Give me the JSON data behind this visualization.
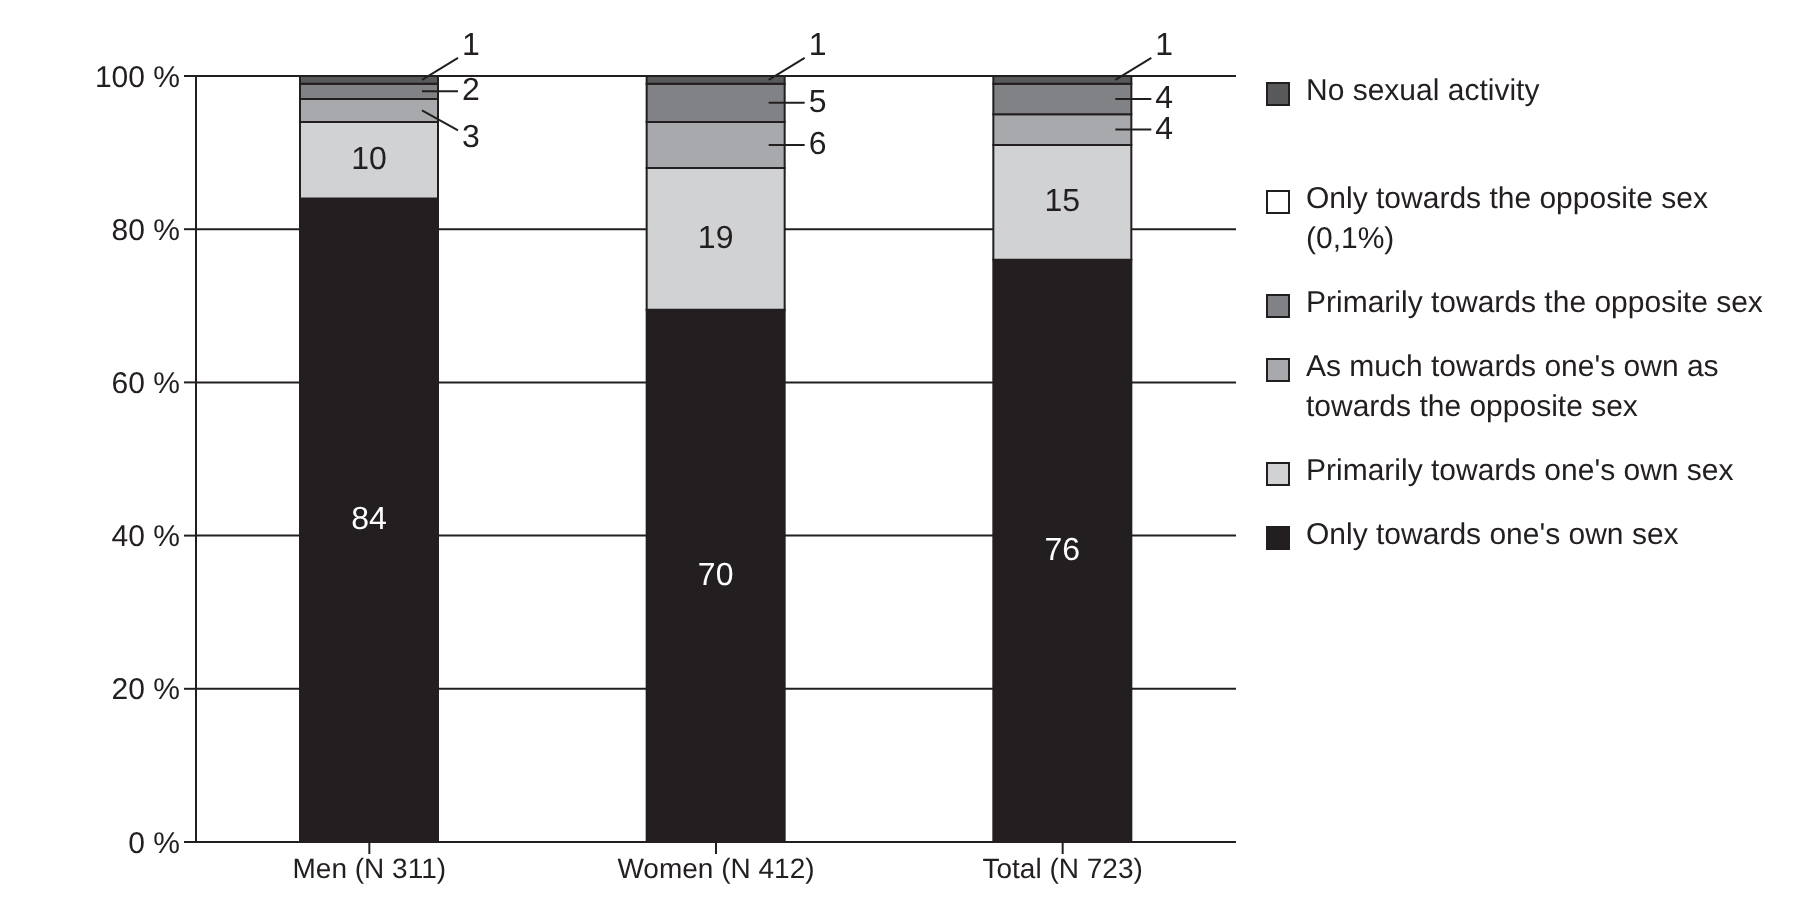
{
  "chart_data": {
    "type": "bar",
    "stacked": true,
    "categories": [
      "Men (N 311)",
      "Women (N 412)",
      "Total (N 723)"
    ],
    "ylim": [
      0,
      100
    ],
    "yticks": [
      {
        "value": 0,
        "label": "0 %"
      },
      {
        "value": 20,
        "label": "20 %"
      },
      {
        "value": 40,
        "label": "40 %"
      },
      {
        "value": 60,
        "label": "60 %"
      },
      {
        "value": 80,
        "label": "80 %"
      },
      {
        "value": 100,
        "label": "100 %"
      }
    ],
    "grid": "y",
    "legend": "right",
    "series": [
      {
        "name": "Only towards one's own sex",
        "color": "#231f20",
        "values": [
          84,
          69.5,
          76
        ],
        "value_labels": [
          "84",
          "70",
          "76"
        ]
      },
      {
        "name": "Primarily towards one's own sex",
        "color": "#d1d2d4",
        "values": [
          10,
          18.5,
          15
        ],
        "value_labels": [
          "10",
          "19",
          "15"
        ]
      },
      {
        "name": "As much towards one's own as towards the opposite sex",
        "color": "#a7a9ac",
        "values": [
          3,
          6,
          4
        ],
        "value_labels": [
          "3",
          "6",
          "4"
        ]
      },
      {
        "name": "Primarily towards the opposite sex",
        "color": "#808285",
        "values": [
          2,
          5,
          4
        ],
        "value_labels": [
          "2",
          "5",
          "4"
        ]
      },
      {
        "name": "Only towards the opposite sex (0,1%)",
        "color": "#ffffff",
        "values": [
          0,
          0,
          0
        ],
        "value_labels": [
          null,
          null,
          null
        ]
      },
      {
        "name": "No sexual activity",
        "color": "#58595b",
        "values": [
          1,
          1,
          1
        ],
        "value_labels": [
          "1",
          "1",
          "1"
        ]
      }
    ]
  }
}
